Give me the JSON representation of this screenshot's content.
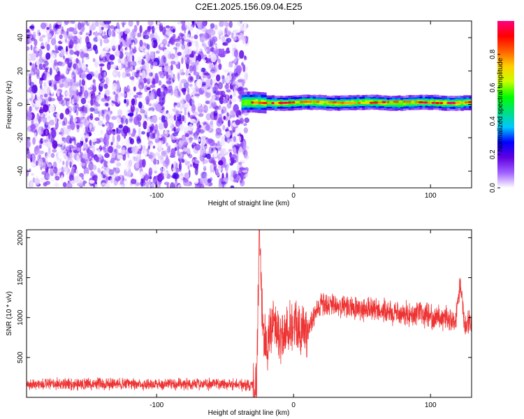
{
  "title": "C2E1.2025.156.09.04.E25",
  "chart_data": [
    {
      "type": "heatmap",
      "xlabel": "Height of straight line (km)",
      "ylabel": "Frequency (Hz)",
      "xlim": [
        -195,
        130
      ],
      "ylim": [
        -50,
        50
      ],
      "xticks": [
        -100,
        0,
        100
      ],
      "xtick_labels": [
        "-100",
        "0",
        "100"
      ],
      "yticks": [
        -40,
        -20,
        0,
        20,
        40
      ],
      "ytick_labels": [
        "-40",
        "-20",
        "0",
        "20",
        "40"
      ],
      "colorbar": {
        "label": "Normalized spectral amplitude",
        "range": [
          0,
          1
        ],
        "ticks": [
          0.0,
          0.2,
          0.4,
          0.6,
          0.8
        ],
        "tick_labels": [
          "0.0",
          "0.2",
          "0.4",
          "0.6",
          "0.8"
        ],
        "colormap": [
          "#ffffff",
          "#a060ff",
          "#6000e0",
          "#0000ff",
          "#00c8ff",
          "#00e080",
          "#00ff00",
          "#c8ff00",
          "#ffd000",
          "#ff6000",
          "#ff0000",
          "#ff0080"
        ]
      },
      "regions": [
        {
          "x_range": [
            -195,
            -38
          ],
          "y_range": [
            -50,
            50
          ],
          "amplitude_range": [
            0.0,
            0.2
          ],
          "pattern": "broadband noise"
        },
        {
          "x_range": [
            -38,
            130
          ],
          "y_range": [
            -3,
            4
          ],
          "amplitude_range": [
            0.3,
            1.0
          ],
          "pattern": "narrow band near 1-2 Hz"
        }
      ]
    },
    {
      "type": "line",
      "xlabel": "Height of straight line (km)",
      "ylabel": "SNR (10 * v/v)",
      "xlim": [
        -195,
        130
      ],
      "ylim": [
        0,
        2100
      ],
      "xticks": [
        -100,
        0,
        100
      ],
      "xtick_labels": [
        "-100",
        "0",
        "100"
      ],
      "yticks": [
        500,
        1000,
        1500,
        2000
      ],
      "ytick_labels": [
        "500",
        "1000",
        "1500",
        "2000"
      ],
      "color": "#ee3333",
      "envelope": {
        "x": [
          -195,
          -150,
          -100,
          -50,
          -30,
          -27,
          -25,
          -22,
          -18,
          -15,
          -10,
          -5,
          0,
          5,
          10,
          15,
          20,
          30,
          40,
          50,
          60,
          70,
          80,
          90,
          100,
          110,
          118,
          122,
          125,
          130
        ],
        "y": [
          160,
          170,
          165,
          170,
          150,
          170,
          2100,
          650,
          750,
          950,
          750,
          850,
          950,
          800,
          850,
          1050,
          1150,
          1150,
          1120,
          1100,
          1100,
          1060,
          1050,
          1050,
          1020,
          1000,
          950,
          1450,
          900,
          950
        ]
      }
    }
  ]
}
